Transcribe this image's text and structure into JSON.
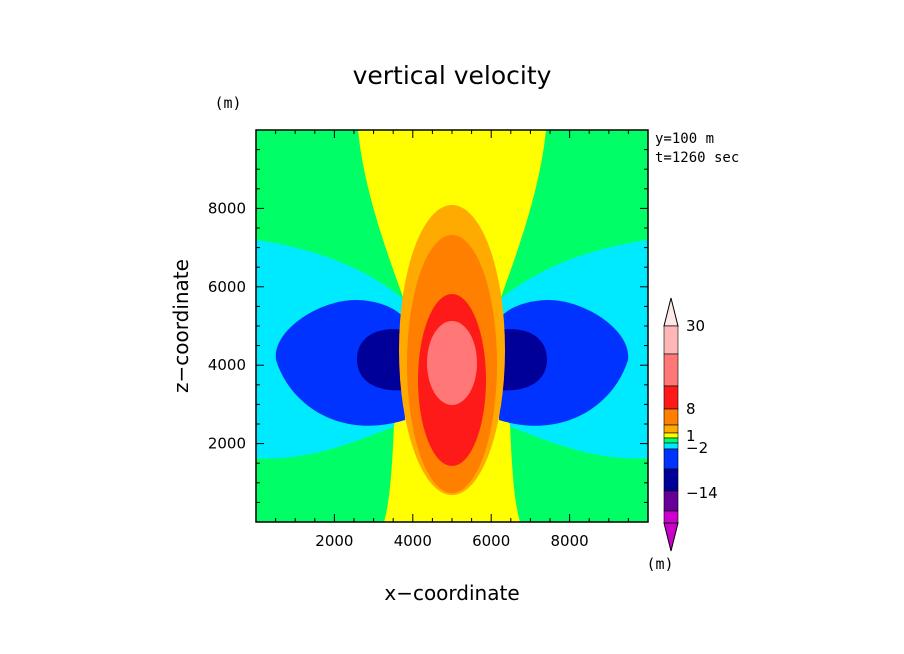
{
  "chart_data": {
    "type": "heatmap",
    "subtype": "filled-contour",
    "title": "vertical velocity",
    "xlabel": "x−coordinate",
    "ylabel": "z−coordinate",
    "x_unit": "(m)",
    "y_unit": "(m)",
    "xlim": [
      0,
      10000
    ],
    "ylim": [
      0,
      10000
    ],
    "xticks": [
      2000,
      4000,
      6000,
      8000
    ],
    "yticks": [
      2000,
      4000,
      6000,
      8000
    ],
    "xtick_labels": [
      "2000",
      "4000",
      "6000",
      "8000"
    ],
    "ytick_labels": [
      "2000",
      "4000",
      "6000",
      "8000"
    ],
    "annotations": [
      "y=100 m",
      "t=1260 sec"
    ],
    "colorbar": {
      "unit": "(m)",
      "labels": [
        "30",
        "8",
        "1",
        "−2",
        "−14"
      ],
      "colors_top_to_bottom": [
        "#ffb6b6",
        "#ff7777",
        "#ff1a1a",
        "#ff7f00",
        "#ffaa00",
        "#ffff00",
        "#00ff66",
        "#00eaff",
        "#0033ff",
        "#000099",
        "#660099",
        "#cc00cc"
      ]
    },
    "regions": [
      {
        "name": "background",
        "color": "#00ff66"
      },
      {
        "name": "left-downdraft-weak",
        "color": "#00eaff"
      },
      {
        "name": "right-downdraft-weak",
        "color": "#00eaff"
      },
      {
        "name": "updraft-column",
        "color": "#ffff00"
      },
      {
        "name": "left-downdraft-moderate",
        "color": "#0033ff"
      },
      {
        "name": "right-downdraft-moderate",
        "color": "#0033ff"
      },
      {
        "name": "left-downdraft-strong",
        "color": "#000099"
      },
      {
        "name": "right-downdraft-strong",
        "color": "#000099"
      },
      {
        "name": "updraft-level-1",
        "color": "#ffaa00"
      },
      {
        "name": "updraft-level-2",
        "color": "#ff7f00"
      },
      {
        "name": "updraft-level-3",
        "color": "#ff1a1a"
      },
      {
        "name": "updraft-core",
        "color": "#ff7777"
      }
    ]
  }
}
